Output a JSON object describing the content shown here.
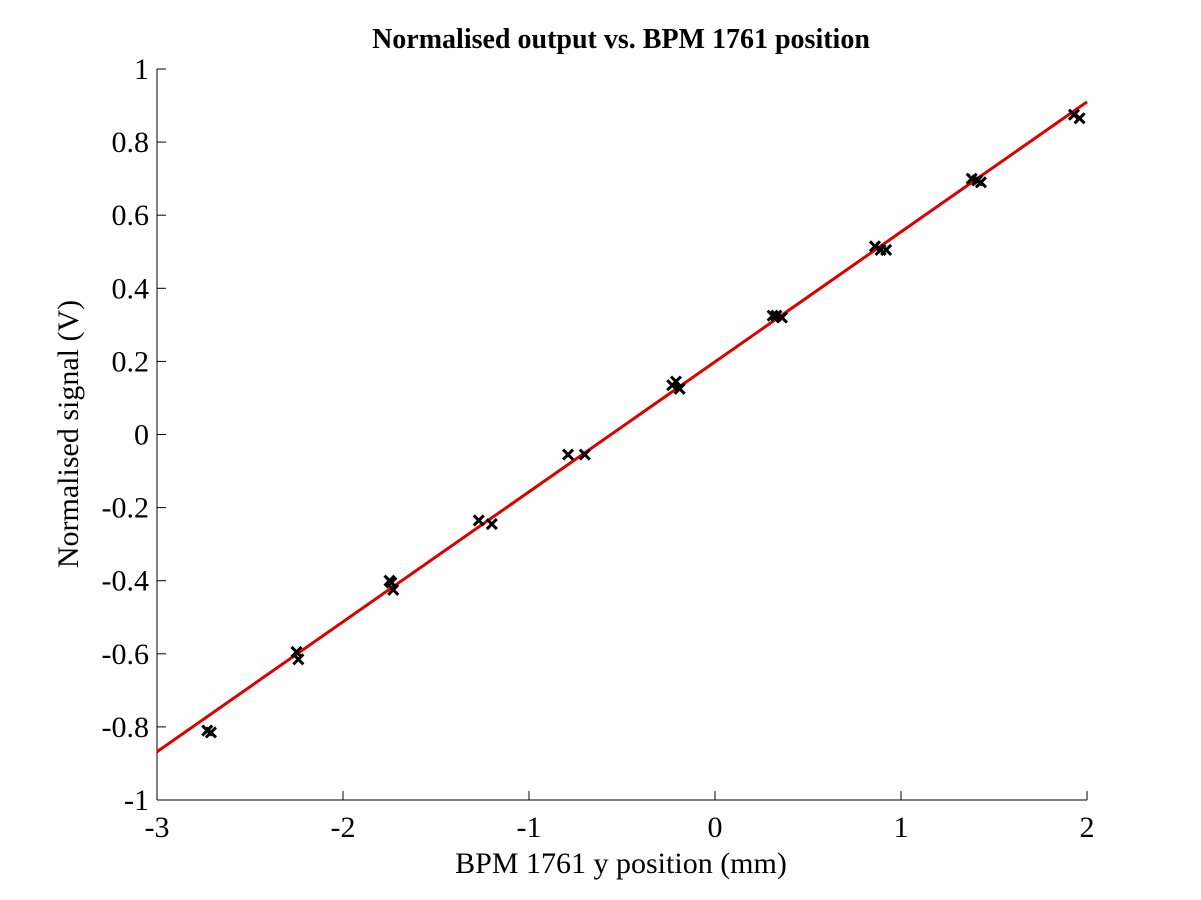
{
  "chart_data": {
    "type": "scatter",
    "title": "Normalised output vs. BPM 1761 position",
    "xlabel": "BPM 1761 y position (mm)",
    "ylabel": "Normalised signal (V)",
    "xlim": [
      -3,
      2
    ],
    "ylim": [
      -1,
      1
    ],
    "xticks": [
      -3,
      -2,
      -1,
      0,
      1,
      2
    ],
    "yticks": [
      -1,
      -0.8,
      -0.6,
      -0.4,
      -0.2,
      0,
      0.2,
      0.4,
      0.6,
      0.8,
      1
    ],
    "xtick_labels": [
      "-3",
      "-2",
      "-1",
      "0",
      "1",
      "2"
    ],
    "ytick_labels": [
      "-1",
      "-0.8",
      "-0.6",
      "-0.4",
      "-0.2",
      "0",
      "0.2",
      "0.4",
      "0.6",
      "0.8",
      "1"
    ],
    "grid": false,
    "series": [
      {
        "marker": "x",
        "color": "#000000",
        "x": [
          -2.73,
          -2.71,
          -2.25,
          -2.24,
          -1.75,
          -1.74,
          -1.73,
          -1.27,
          -1.2,
          -0.79,
          -0.7,
          -0.23,
          -0.21,
          -0.19,
          0.31,
          0.33,
          0.36,
          0.86,
          0.89,
          0.92,
          1.38,
          1.41,
          1.43,
          1.93,
          1.96
        ],
        "y": [
          -0.81,
          -0.815,
          -0.595,
          -0.615,
          -0.4,
          -0.405,
          -0.425,
          -0.235,
          -0.245,
          -0.055,
          -0.055,
          0.135,
          0.145,
          0.125,
          0.325,
          0.325,
          0.32,
          0.515,
          0.505,
          0.505,
          0.7,
          0.695,
          0.69,
          0.875,
          0.865
        ]
      }
    ],
    "fit_line": {
      "color": "#dd0000",
      "x": [
        -3,
        2
      ],
      "y": [
        -0.868,
        0.91
      ]
    }
  }
}
